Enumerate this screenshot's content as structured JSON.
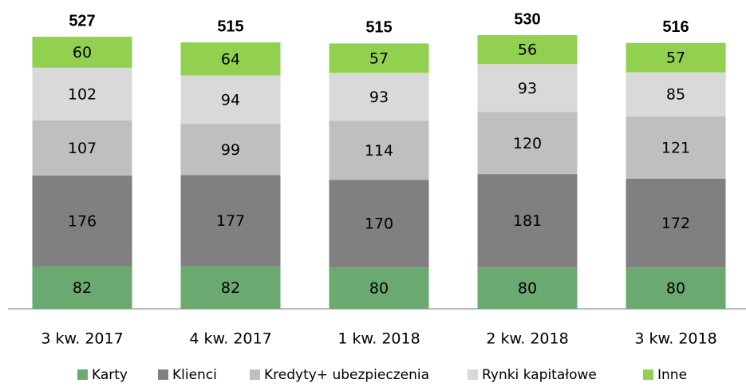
{
  "chart_data": {
    "type": "stacked_bar",
    "categories": [
      "3 kw. 2017",
      "4 kw. 2017",
      "1 kw. 2018",
      "2 kw. 2018",
      "3 kw. 2018"
    ],
    "series": [
      {
        "name": "Karty",
        "color": "#6aa96f",
        "values": [
          82,
          82,
          80,
          80,
          80
        ]
      },
      {
        "name": "Klienci",
        "color": "#808080",
        "values": [
          176,
          177,
          170,
          181,
          172
        ]
      },
      {
        "name": "Kredyty+ ubezpieczenia",
        "color": "#bfbfbf",
        "values": [
          107,
          99,
          114,
          120,
          121
        ]
      },
      {
        "name": "Rynki kapitałowe",
        "color": "#d9d9d9",
        "values": [
          102,
          94,
          93,
          93,
          85
        ]
      },
      {
        "name": "Inne",
        "color": "#92d050",
        "values": [
          60,
          64,
          57,
          56,
          57
        ]
      }
    ],
    "totals": [
      527,
      515,
      515,
      530,
      516
    ],
    "legend": "bottom"
  }
}
